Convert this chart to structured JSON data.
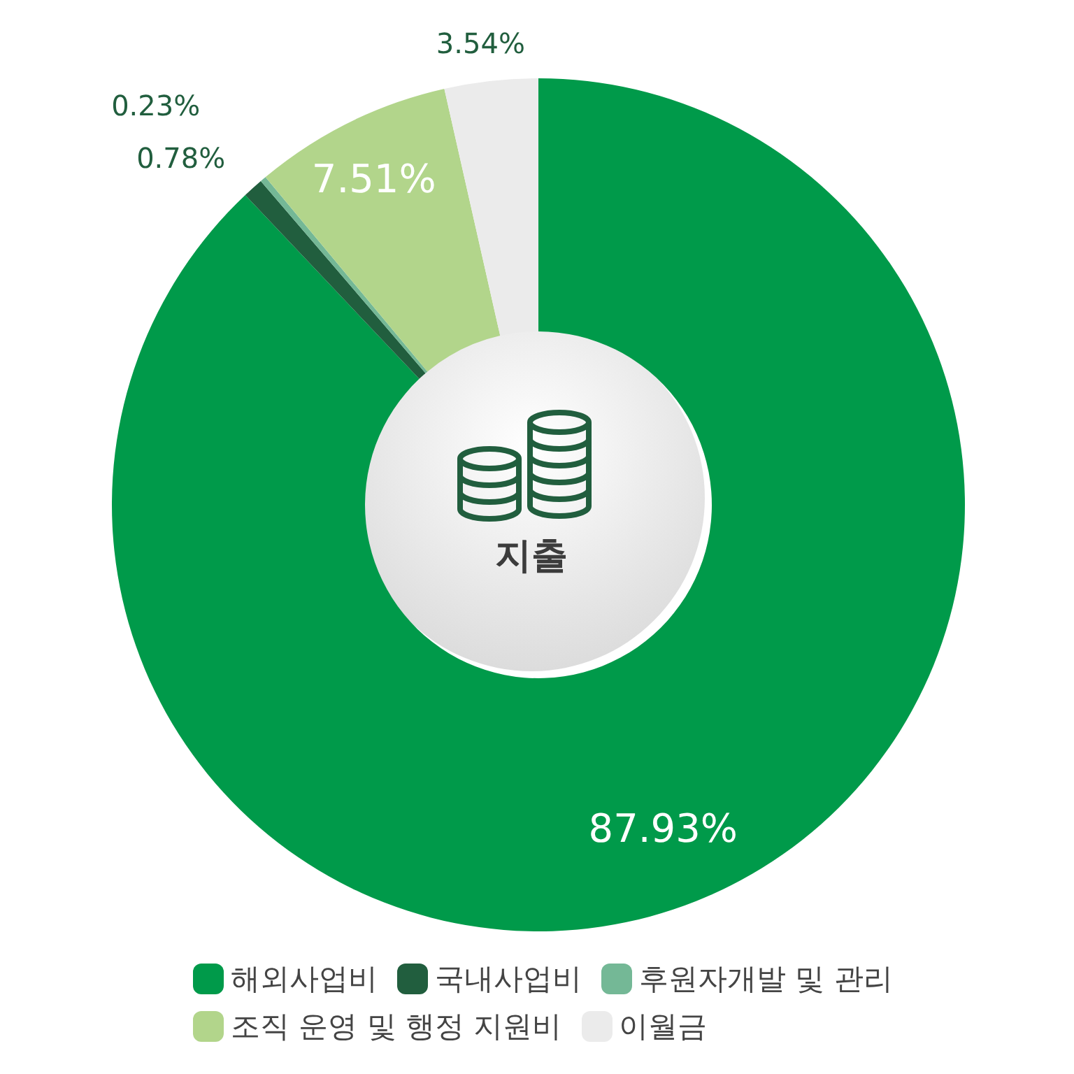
{
  "chart_data": {
    "type": "donut",
    "title": "지출",
    "categories": [
      "해외사업비",
      "국내사업비",
      "후원자개발 및 관리",
      "조직 운영 및 행정 지원비",
      "이월금"
    ],
    "values": [
      87.93,
      0.78,
      0.23,
      7.51,
      3.54
    ],
    "colors": [
      "#009a4a",
      "#215e3e",
      "#74b896",
      "#b2d58b",
      "#ebebeb"
    ],
    "value_labels": [
      "87.93%",
      "0.78%",
      "0.23%",
      "7.51%",
      "3.54%"
    ],
    "legend": "bottom"
  }
}
